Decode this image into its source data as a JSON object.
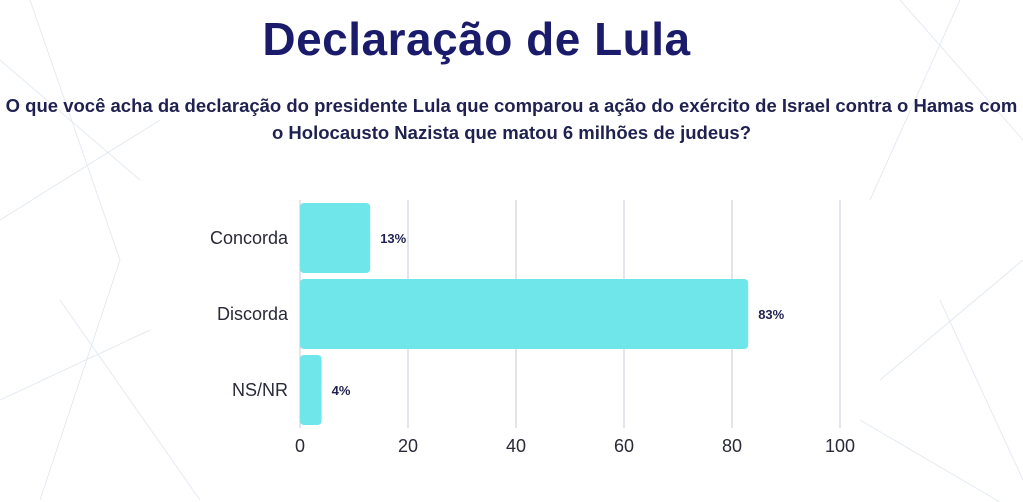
{
  "title": "Declaração de Lula",
  "question": "O que você acha da declaração do presidente Lula que comparou a ação do exército de Israel contra o Hamas com o Holocausto Nazista que matou 6 milhões de judeus?",
  "colors": {
    "bar": "#6ee6ea",
    "title": "#1a1c6b",
    "grid": "#c8c9d8"
  },
  "chart_data": {
    "type": "bar",
    "orientation": "horizontal",
    "categories": [
      "Concorda",
      "Discorda",
      "NS/NR"
    ],
    "values": [
      13,
      83,
      4
    ],
    "value_labels": [
      "13%",
      "83%",
      "4%"
    ],
    "xlim": [
      0,
      100
    ],
    "xticks": [
      "0",
      "20",
      "40",
      "60",
      "80",
      "100"
    ],
    "grid": true
  }
}
